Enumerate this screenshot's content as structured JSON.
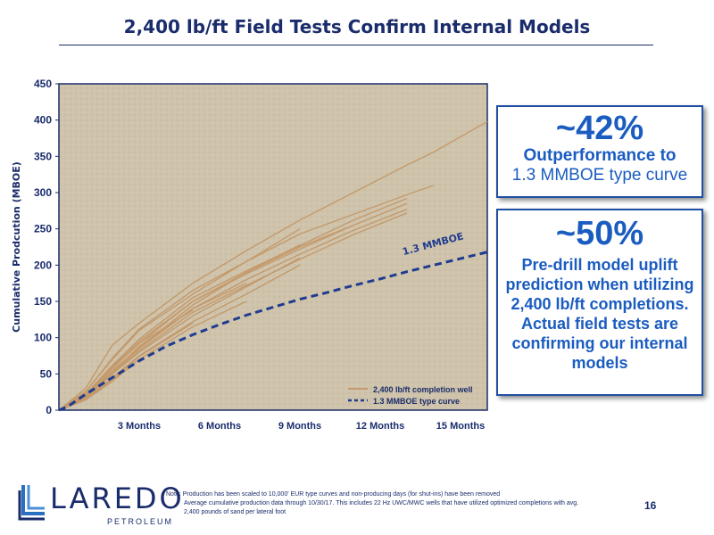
{
  "title": "2,400 lb/ft Field Tests Confirm Internal Models",
  "callouts": [
    {
      "big": "~42%",
      "line1": "Outperformance to",
      "line2": "1.3 MMBOE type curve"
    },
    {
      "big": "~50%",
      "text": "Pre-drill model uplift prediction when utilizing 2,400 lb/ft completions. Actual field tests are confirming our internal models"
    }
  ],
  "logo": {
    "word": "LAREDO",
    "sub": "PETROLEUM"
  },
  "note": {
    "prefix": "Note:",
    "line1": "Production has been scaled to 10,000' EUR type curves and non-producing days (for shut-ins) have been removed",
    "line2": "Average cumulative production data through 10/30/17. This includes 22 Hz UWC/MWC wells that have utilized optimized completions with avg. 2,400 pounds of sand per lateral foot"
  },
  "page_number": "16",
  "colors": {
    "navy": "#1a2c6b",
    "well": "#c49a6c",
    "typecurve": "#1f3c8f",
    "plot_bg": "#cfc3ab",
    "callout_text": "#1a5cc0"
  },
  "chart_data": {
    "type": "line",
    "ylabel": "Cumulative Prodcution (MBOE)",
    "xlabel": "",
    "ylim": [
      0,
      450
    ],
    "xlim": [
      0,
      480
    ],
    "yticks": [
      0,
      50,
      100,
      150,
      200,
      250,
      300,
      350,
      400,
      450
    ],
    "xticks": [
      {
        "day": 90,
        "label": "3 Months"
      },
      {
        "day": 180,
        "label": "6 Months"
      },
      {
        "day": 270,
        "label": "9 Months"
      },
      {
        "day": 360,
        "label": "12 Months"
      },
      {
        "day": 450,
        "label": "15 Months"
      }
    ],
    "annotation": {
      "text": "1.3 MMBOE",
      "x": 420,
      "y": 215
    },
    "legend": {
      "position": "bottom-right",
      "entries": [
        "2,400 lb/ft completion well",
        "1.3 MMBOE type curve"
      ]
    },
    "type_curve": {
      "name": "1.3 MMBOE type curve",
      "x": [
        0,
        10,
        30,
        60,
        90,
        120,
        150,
        180,
        210,
        240,
        270,
        300,
        330,
        360,
        390,
        420,
        450,
        480
      ],
      "y": [
        0,
        5,
        22,
        45,
        68,
        88,
        104,
        118,
        131,
        142,
        153,
        162,
        172,
        181,
        191,
        200,
        209,
        218
      ]
    },
    "wells": [
      {
        "x": [
          0,
          30,
          60,
          90,
          150,
          210,
          270,
          330,
          390,
          420,
          480
        ],
        "y": [
          0,
          30,
          90,
          120,
          175,
          220,
          262,
          300,
          338,
          356,
          398
        ]
      },
      {
        "x": [
          0,
          30,
          60,
          90,
          150,
          210,
          270,
          330,
          390,
          420
        ],
        "y": [
          0,
          25,
          72,
          112,
          165,
          205,
          243,
          270,
          297,
          310
        ]
      },
      {
        "x": [
          0,
          30,
          60,
          90,
          150,
          210,
          270,
          330,
          390
        ],
        "y": [
          0,
          22,
          62,
          98,
          155,
          192,
          227,
          262,
          292
        ]
      },
      {
        "x": [
          0,
          30,
          60,
          90,
          150,
          210,
          270,
          330,
          390
        ],
        "y": [
          0,
          20,
          58,
          92,
          150,
          188,
          222,
          255,
          285
        ]
      },
      {
        "x": [
          0,
          30,
          60,
          90,
          150,
          210,
          270,
          330,
          390
        ],
        "y": [
          0,
          18,
          52,
          85,
          140,
          180,
          215,
          248,
          277
        ]
      },
      {
        "x": [
          0,
          30,
          60,
          90,
          150,
          210,
          270,
          330,
          390
        ],
        "y": [
          0,
          17,
          50,
          82,
          135,
          172,
          208,
          242,
          272
        ]
      },
      {
        "x": [
          0,
          30,
          60,
          90,
          150,
          210,
          270,
          330
        ],
        "y": [
          0,
          19,
          55,
          86,
          145,
          190,
          225,
          255
        ]
      },
      {
        "x": [
          0,
          30,
          60,
          90,
          150,
          210,
          270
        ],
        "y": [
          0,
          26,
          70,
          110,
          160,
          205,
          250
        ]
      },
      {
        "x": [
          0,
          30,
          60,
          90,
          150,
          210,
          270
        ],
        "y": [
          0,
          22,
          60,
          95,
          150,
          190,
          228
        ]
      },
      {
        "x": [
          0,
          30,
          60,
          90,
          150,
          210,
          270
        ],
        "y": [
          0,
          18,
          50,
          80,
          130,
          170,
          210
        ]
      },
      {
        "x": [
          0,
          30,
          60,
          90,
          150,
          210,
          270
        ],
        "y": [
          0,
          16,
          45,
          75,
          122,
          160,
          200
        ]
      },
      {
        "x": [
          0,
          30,
          60,
          90,
          150,
          210
        ],
        "y": [
          0,
          20,
          52,
          88,
          140,
          175
        ]
      },
      {
        "x": [
          0,
          30,
          60,
          90,
          150,
          210
        ],
        "y": [
          0,
          14,
          40,
          70,
          115,
          150
        ]
      },
      {
        "x": [
          0,
          30,
          60,
          90,
          150
        ],
        "y": [
          0,
          22,
          58,
          92,
          138
        ]
      },
      {
        "x": [
          0,
          30,
          60,
          90,
          150
        ],
        "y": [
          0,
          15,
          42,
          74,
          120
        ]
      }
    ]
  }
}
